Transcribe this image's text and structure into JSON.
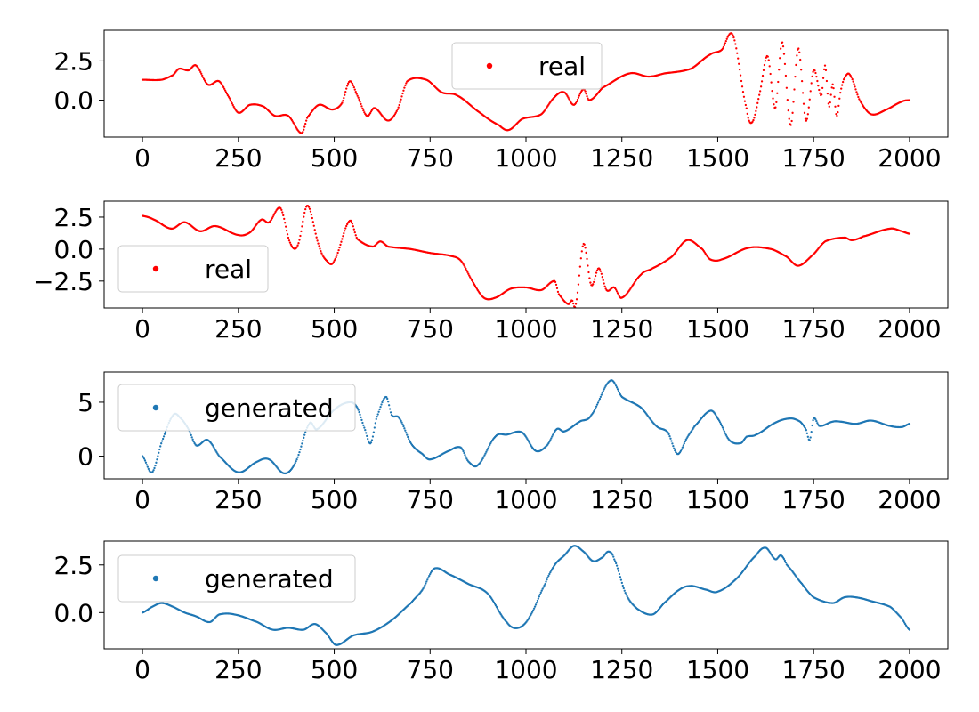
{
  "chart_data": [
    {
      "type": "scatter",
      "xlim": [
        -100,
        2100
      ],
      "ylim": [
        -2.35,
        4.45
      ],
      "xticks": [
        0,
        250,
        500,
        750,
        1000,
        1250,
        1500,
        1750,
        2000
      ],
      "yticks": [
        0.0,
        2.5
      ],
      "legend_position": "top-center",
      "series": [
        {
          "name": "real",
          "color": "#ff0000",
          "points": [
            [
              0,
              1.3
            ],
            [
              50,
              1.3
            ],
            [
              80,
              1.6
            ],
            [
              95,
              2.0
            ],
            [
              120,
              1.9
            ],
            [
              140,
              2.2
            ],
            [
              170,
              1.0
            ],
            [
              200,
              1.2
            ],
            [
              225,
              0.2
            ],
            [
              250,
              -0.8
            ],
            [
              280,
              -0.3
            ],
            [
              315,
              -0.4
            ],
            [
              345,
              -1.0
            ],
            [
              380,
              -1.0
            ],
            [
              415,
              -2.1
            ],
            [
              430,
              -1.1
            ],
            [
              460,
              -0.3
            ],
            [
              495,
              -0.6
            ],
            [
              520,
              -0.2
            ],
            [
              540,
              1.2
            ],
            [
              560,
              0.3
            ],
            [
              585,
              -1.0
            ],
            [
              605,
              -0.5
            ],
            [
              640,
              -1.3
            ],
            [
              665,
              -0.6
            ],
            [
              690,
              1.2
            ],
            [
              740,
              1.3
            ],
            [
              780,
              0.5
            ],
            [
              820,
              0.3
            ],
            [
              880,
              -0.8
            ],
            [
              930,
              -1.6
            ],
            [
              955,
              -1.9
            ],
            [
              990,
              -1.2
            ],
            [
              1040,
              -0.9
            ],
            [
              1075,
              0.2
            ],
            [
              1100,
              0.5
            ],
            [
              1125,
              -0.3
            ],
            [
              1150,
              0.7
            ],
            [
              1165,
              0.0
            ],
            [
              1200,
              0.8
            ],
            [
              1270,
              1.7
            ],
            [
              1320,
              1.5
            ],
            [
              1360,
              1.7
            ],
            [
              1430,
              2.0
            ],
            [
              1480,
              2.9
            ],
            [
              1510,
              3.2
            ],
            [
              1540,
              4.1
            ],
            [
              1575,
              -0.5
            ],
            [
              1590,
              -1.4
            ],
            [
              1610,
              0.5
            ],
            [
              1630,
              2.8
            ],
            [
              1650,
              -0.5
            ],
            [
              1668,
              3.7
            ],
            [
              1690,
              -1.6
            ],
            [
              1710,
              3.3
            ],
            [
              1730,
              -1.3
            ],
            [
              1750,
              1.9
            ],
            [
              1770,
              0.3
            ],
            [
              1780,
              2.2
            ],
            [
              1790,
              -0.4
            ],
            [
              1800,
              1.0
            ],
            [
              1810,
              -1.0
            ],
            [
              1820,
              0.5
            ],
            [
              1830,
              1.4
            ],
            [
              1845,
              1.6
            ],
            [
              1870,
              0.0
            ],
            [
              1900,
              -0.9
            ],
            [
              1940,
              -0.6
            ],
            [
              1980,
              -0.1
            ],
            [
              2000,
              0.0
            ]
          ]
        }
      ]
    },
    {
      "type": "scatter",
      "xlim": [
        -100,
        2100
      ],
      "ylim": [
        -4.6,
        3.75
      ],
      "xticks": [
        0,
        250,
        500,
        750,
        1000,
        1250,
        1500,
        1750,
        2000
      ],
      "yticks": [
        -2.5,
        0.0,
        2.5
      ],
      "legend_position": "lower-left",
      "series": [
        {
          "name": "real",
          "color": "#ff0000",
          "points": [
            [
              0,
              2.6
            ],
            [
              30,
              2.3
            ],
            [
              75,
              1.6
            ],
            [
              110,
              2.1
            ],
            [
              150,
              1.4
            ],
            [
              190,
              1.8
            ],
            [
              250,
              1.1
            ],
            [
              280,
              1.3
            ],
            [
              310,
              2.3
            ],
            [
              330,
              2.1
            ],
            [
              360,
              3.2
            ],
            [
              385,
              0.5
            ],
            [
              405,
              0.3
            ],
            [
              430,
              3.4
            ],
            [
              460,
              0.3
            ],
            [
              480,
              -0.9
            ],
            [
              500,
              -0.9
            ],
            [
              540,
              2.2
            ],
            [
              560,
              0.8
            ],
            [
              600,
              0.2
            ],
            [
              620,
              0.6
            ],
            [
              640,
              0.2
            ],
            [
              700,
              0.0
            ],
            [
              750,
              -0.3
            ],
            [
              800,
              -0.5
            ],
            [
              830,
              -0.9
            ],
            [
              860,
              -2.5
            ],
            [
              890,
              -3.8
            ],
            [
              920,
              -3.8
            ],
            [
              960,
              -3.1
            ],
            [
              1000,
              -3.0
            ],
            [
              1040,
              -3.2
            ],
            [
              1075,
              -2.5
            ],
            [
              1085,
              -3.5
            ],
            [
              1110,
              -4.3
            ],
            [
              1120,
              -4.0
            ],
            [
              1130,
              -4.3
            ],
            [
              1150,
              0.4
            ],
            [
              1170,
              -2.8
            ],
            [
              1190,
              -1.5
            ],
            [
              1210,
              -3.2
            ],
            [
              1230,
              -3.0
            ],
            [
              1250,
              -3.8
            ],
            [
              1300,
              -2.0
            ],
            [
              1330,
              -1.5
            ],
            [
              1380,
              -0.6
            ],
            [
              1420,
              0.7
            ],
            [
              1460,
              0.0
            ],
            [
              1480,
              -0.8
            ],
            [
              1510,
              -0.8
            ],
            [
              1580,
              0.1
            ],
            [
              1640,
              0.0
            ],
            [
              1680,
              -0.6
            ],
            [
              1710,
              -1.3
            ],
            [
              1750,
              -0.4
            ],
            [
              1780,
              0.6
            ],
            [
              1830,
              0.9
            ],
            [
              1850,
              0.7
            ],
            [
              1880,
              1.0
            ],
            [
              1950,
              1.6
            ],
            [
              1980,
              1.4
            ],
            [
              2000,
              1.2
            ]
          ]
        }
      ]
    },
    {
      "type": "scatter",
      "xlim": [
        -100,
        2100
      ],
      "ylim": [
        -2.1,
        7.8
      ],
      "xticks": [
        0,
        250,
        500,
        750,
        1000,
        1250,
        1500,
        1750,
        2000
      ],
      "yticks": [
        0,
        5
      ],
      "legend_position": "top-left",
      "series": [
        {
          "name": "generated",
          "color": "#1f77b4",
          "points": [
            [
              0,
              0.0
            ],
            [
              25,
              -1.5
            ],
            [
              50,
              1.3
            ],
            [
              80,
              3.8
            ],
            [
              100,
              3.5
            ],
            [
              120,
              2.5
            ],
            [
              140,
              1.0
            ],
            [
              170,
              1.5
            ],
            [
              200,
              0.0
            ],
            [
              250,
              -1.5
            ],
            [
              300,
              -0.5
            ],
            [
              330,
              -0.3
            ],
            [
              370,
              -1.6
            ],
            [
              400,
              -0.5
            ],
            [
              435,
              3.0
            ],
            [
              455,
              2.5
            ],
            [
              500,
              4.3
            ],
            [
              540,
              5.0
            ],
            [
              560,
              4.5
            ],
            [
              580,
              2.5
            ],
            [
              595,
              1.2
            ],
            [
              610,
              3.5
            ],
            [
              635,
              5.5
            ],
            [
              650,
              3.8
            ],
            [
              670,
              3.5
            ],
            [
              700,
              1.2
            ],
            [
              730,
              0.2
            ],
            [
              750,
              -0.3
            ],
            [
              800,
              0.5
            ],
            [
              830,
              0.8
            ],
            [
              850,
              -0.5
            ],
            [
              875,
              -0.8
            ],
            [
              920,
              1.8
            ],
            [
              950,
              2.0
            ],
            [
              990,
              2.2
            ],
            [
              1025,
              0.5
            ],
            [
              1055,
              1.0
            ],
            [
              1080,
              2.5
            ],
            [
              1100,
              2.3
            ],
            [
              1140,
              3.2
            ],
            [
              1170,
              3.8
            ],
            [
              1220,
              7.0
            ],
            [
              1250,
              5.5
            ],
            [
              1300,
              4.5
            ],
            [
              1340,
              2.8
            ],
            [
              1370,
              2.2
            ],
            [
              1395,
              0.2
            ],
            [
              1420,
              1.7
            ],
            [
              1440,
              2.8
            ],
            [
              1480,
              4.2
            ],
            [
              1500,
              3.5
            ],
            [
              1530,
              1.5
            ],
            [
              1560,
              1.2
            ],
            [
              1575,
              1.8
            ],
            [
              1600,
              2.0
            ],
            [
              1650,
              3.1
            ],
            [
              1690,
              3.5
            ],
            [
              1715,
              3.2
            ],
            [
              1730,
              2.5
            ],
            [
              1740,
              1.5
            ],
            [
              1750,
              3.5
            ],
            [
              1765,
              2.8
            ],
            [
              1800,
              3.2
            ],
            [
              1820,
              3.2
            ],
            [
              1860,
              3.0
            ],
            [
              1900,
              3.3
            ],
            [
              1950,
              2.8
            ],
            [
              1980,
              2.7
            ],
            [
              2000,
              3.0
            ]
          ]
        }
      ]
    },
    {
      "type": "scatter",
      "xlim": [
        -100,
        2100
      ],
      "ylim": [
        -1.9,
        3.75
      ],
      "xticks": [
        0,
        250,
        500,
        750,
        1000,
        1250,
        1500,
        1750,
        2000
      ],
      "yticks": [
        0.0,
        2.5
      ],
      "legend_position": "top-left",
      "series": [
        {
          "name": "generated",
          "color": "#1f77b4",
          "points": [
            [
              0,
              0.0
            ],
            [
              25,
              0.3
            ],
            [
              50,
              0.5
            ],
            [
              80,
              0.3
            ],
            [
              110,
              0.0
            ],
            [
              140,
              -0.2
            ],
            [
              175,
              -0.5
            ],
            [
              200,
              -0.1
            ],
            [
              240,
              -0.1
            ],
            [
              300,
              -0.5
            ],
            [
              340,
              -0.9
            ],
            [
              380,
              -0.8
            ],
            [
              420,
              -0.9
            ],
            [
              450,
              -0.6
            ],
            [
              480,
              -1.1
            ],
            [
              505,
              -1.7
            ],
            [
              550,
              -1.2
            ],
            [
              600,
              -1.0
            ],
            [
              650,
              -0.4
            ],
            [
              700,
              0.5
            ],
            [
              730,
              1.2
            ],
            [
              760,
              2.3
            ],
            [
              800,
              2.0
            ],
            [
              850,
              1.5
            ],
            [
              900,
              1.0
            ],
            [
              950,
              -0.5
            ],
            [
              980,
              -0.8
            ],
            [
              1010,
              -0.2
            ],
            [
              1050,
              1.5
            ],
            [
              1075,
              2.5
            ],
            [
              1100,
              3.0
            ],
            [
              1125,
              3.5
            ],
            [
              1150,
              3.2
            ],
            [
              1175,
              2.7
            ],
            [
              1200,
              2.9
            ],
            [
              1215,
              3.2
            ],
            [
              1230,
              2.8
            ],
            [
              1260,
              1.0
            ],
            [
              1290,
              0.2
            ],
            [
              1330,
              -0.1
            ],
            [
              1360,
              0.5
            ],
            [
              1400,
              1.2
            ],
            [
              1430,
              1.4
            ],
            [
              1470,
              1.2
            ],
            [
              1500,
              1.1
            ],
            [
              1550,
              1.8
            ],
            [
              1600,
              3.0
            ],
            [
              1625,
              3.4
            ],
            [
              1650,
              2.8
            ],
            [
              1665,
              3.0
            ],
            [
              1680,
              2.5
            ],
            [
              1720,
              1.5
            ],
            [
              1750,
              0.8
            ],
            [
              1800,
              0.5
            ],
            [
              1830,
              0.8
            ],
            [
              1860,
              0.8
            ],
            [
              1900,
              0.6
            ],
            [
              1950,
              0.3
            ],
            [
              1980,
              -0.3
            ],
            [
              2000,
              -0.9
            ]
          ]
        }
      ]
    }
  ]
}
